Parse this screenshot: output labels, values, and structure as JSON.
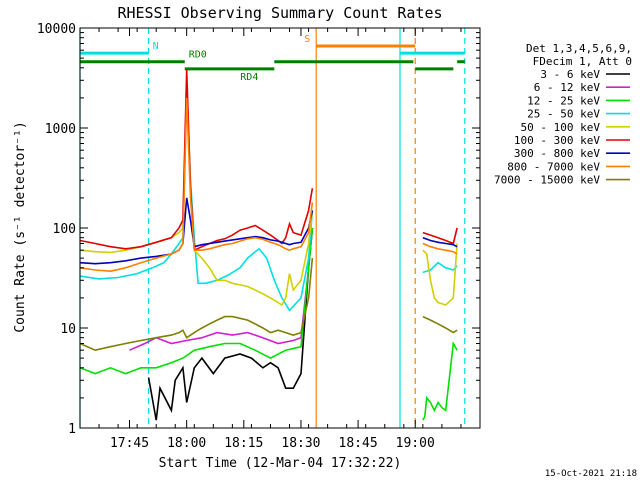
{
  "chart_data": {
    "type": "line",
    "title": "RHESSI Observing Summary Count Rates",
    "xlabel": "Start Time (12-Mar-04 17:32:22)",
    "ylabel": "Count Rate (s⁻¹ detector⁻¹)",
    "yscale": "log",
    "ylim": [
      1,
      10000
    ],
    "xlim_minutes": [
      0,
      105
    ],
    "x_ticks": [
      {
        "min": 13,
        "label": "17:45"
      },
      {
        "min": 28,
        "label": "18:00"
      },
      {
        "min": 43,
        "label": "18:15"
      },
      {
        "min": 58,
        "label": "18:30"
      },
      {
        "min": 73,
        "label": "18:45"
      },
      {
        "min": 88,
        "label": "19:00"
      }
    ],
    "y_ticks": [
      {
        "v": 1,
        "label": "1"
      },
      {
        "v": 10,
        "label": "10"
      },
      {
        "v": 100,
        "label": "100"
      },
      {
        "v": 1000,
        "label": "1000"
      },
      {
        "v": 10000,
        "label": "10000"
      }
    ],
    "legend_header": [
      "Det 1,3,4,5,6,9,",
      "FDecim 1, Att 0"
    ],
    "legend_position": "right",
    "series": [
      {
        "name": "3 - 6 keV",
        "color": "#000000",
        "points": [
          [
            18,
            3.2
          ],
          [
            20,
            1.2
          ],
          [
            21,
            2.5
          ],
          [
            24,
            1.5
          ],
          [
            25,
            3
          ],
          [
            27,
            4
          ],
          [
            28,
            1.8
          ],
          [
            30,
            4
          ],
          [
            32,
            5
          ],
          [
            35,
            3.5
          ],
          [
            38,
            5
          ],
          [
            42,
            5.5
          ],
          [
            45,
            5
          ],
          [
            48,
            4
          ],
          [
            50,
            4.5
          ],
          [
            52,
            4
          ],
          [
            54,
            2.5
          ],
          [
            56,
            2.5
          ],
          [
            58,
            3.5
          ],
          [
            60,
            40
          ],
          [
            61,
            100
          ]
        ]
      },
      {
        "name": "6 - 12 keV",
        "color": "#d020d0",
        "points": [
          [
            13,
            6
          ],
          [
            17,
            7
          ],
          [
            20,
            8
          ],
          [
            24,
            7
          ],
          [
            28,
            7.5
          ],
          [
            32,
            8
          ],
          [
            36,
            9
          ],
          [
            40,
            8.5
          ],
          [
            44,
            9
          ],
          [
            48,
            8
          ],
          [
            52,
            7
          ],
          [
            56,
            7.5
          ],
          [
            58,
            8
          ],
          [
            60,
            40
          ],
          [
            61,
            100
          ]
        ]
      },
      {
        "name": "12 - 25 keV",
        "color": "#00e000",
        "points": [
          [
            0,
            4
          ],
          [
            4,
            3.5
          ],
          [
            8,
            4
          ],
          [
            12,
            3.5
          ],
          [
            16,
            4
          ],
          [
            20,
            4
          ],
          [
            24,
            4.5
          ],
          [
            27,
            5
          ],
          [
            30,
            6
          ],
          [
            34,
            6.5
          ],
          [
            38,
            7
          ],
          [
            42,
            7
          ],
          [
            46,
            6
          ],
          [
            50,
            5
          ],
          [
            54,
            6
          ],
          [
            58,
            6.5
          ],
          [
            60,
            40
          ],
          [
            61,
            100
          ],
          [
            90,
            1.2
          ],
          [
            90.5,
            1.3
          ],
          [
            91,
            2
          ],
          [
            92,
            1.8
          ],
          [
            93,
            1.5
          ],
          [
            94,
            1.8
          ],
          [
            95,
            1.6
          ],
          [
            96,
            1.5
          ],
          [
            98,
            7
          ],
          [
            99,
            6
          ]
        ]
      },
      {
        "name": "25 - 50 keV",
        "color": "#00e0e0",
        "points": [
          [
            0,
            33
          ],
          [
            5,
            31
          ],
          [
            10,
            32
          ],
          [
            15,
            35
          ],
          [
            19,
            40
          ],
          [
            22,
            45
          ],
          [
            24,
            55
          ],
          [
            26,
            70
          ],
          [
            27,
            80
          ],
          [
            28,
            2500
          ],
          [
            29,
            300
          ],
          [
            30,
            80
          ],
          [
            31,
            28
          ],
          [
            33,
            28
          ],
          [
            36,
            30
          ],
          [
            39,
            34
          ],
          [
            42,
            40
          ],
          [
            44,
            50
          ],
          [
            46,
            58
          ],
          [
            47,
            62
          ],
          [
            49,
            50
          ],
          [
            51,
            30
          ],
          [
            53,
            20
          ],
          [
            55,
            15
          ],
          [
            58,
            20
          ],
          [
            60,
            50
          ],
          [
            61,
            150
          ],
          [
            90,
            36
          ],
          [
            92,
            38
          ],
          [
            94,
            45
          ],
          [
            96,
            40
          ],
          [
            98,
            38
          ],
          [
            99,
            42
          ]
        ]
      },
      {
        "name": "50 - 100 keV",
        "color": "#d0d000",
        "points": [
          [
            0,
            60
          ],
          [
            4,
            58
          ],
          [
            8,
            57
          ],
          [
            12,
            60
          ],
          [
            16,
            65
          ],
          [
            20,
            72
          ],
          [
            24,
            80
          ],
          [
            26,
            90
          ],
          [
            27,
            100
          ],
          [
            28,
            3000
          ],
          [
            29,
            250
          ],
          [
            30,
            60
          ],
          [
            32,
            50
          ],
          [
            34,
            40
          ],
          [
            36,
            30
          ],
          [
            38,
            30
          ],
          [
            40,
            28
          ],
          [
            42,
            27
          ],
          [
            44,
            26
          ],
          [
            46,
            24
          ],
          [
            48,
            22
          ],
          [
            50,
            20
          ],
          [
            52,
            18
          ],
          [
            53,
            17
          ],
          [
            54,
            20
          ],
          [
            55,
            35
          ],
          [
            56,
            24
          ],
          [
            58,
            30
          ],
          [
            60,
            70
          ],
          [
            61,
            150
          ],
          [
            90,
            60
          ],
          [
            91,
            55
          ],
          [
            92,
            30
          ],
          [
            93,
            20
          ],
          [
            94,
            18
          ],
          [
            96,
            17
          ],
          [
            98,
            20
          ],
          [
            99,
            70
          ]
        ]
      },
      {
        "name": "100 - 300 keV",
        "color": "#e00000",
        "points": [
          [
            0,
            75
          ],
          [
            4,
            70
          ],
          [
            8,
            65
          ],
          [
            12,
            62
          ],
          [
            16,
            65
          ],
          [
            20,
            72
          ],
          [
            24,
            80
          ],
          [
            26,
            100
          ],
          [
            27,
            120
          ],
          [
            28,
            3800
          ],
          [
            29,
            250
          ],
          [
            30,
            60
          ],
          [
            32,
            65
          ],
          [
            34,
            70
          ],
          [
            36,
            75
          ],
          [
            38,
            78
          ],
          [
            40,
            85
          ],
          [
            42,
            95
          ],
          [
            44,
            100
          ],
          [
            46,
            106
          ],
          [
            48,
            95
          ],
          [
            50,
            85
          ],
          [
            52,
            75
          ],
          [
            53,
            70
          ],
          [
            54,
            80
          ],
          [
            55,
            110
          ],
          [
            56,
            90
          ],
          [
            58,
            85
          ],
          [
            60,
            150
          ],
          [
            61,
            250
          ],
          [
            90,
            90
          ],
          [
            92,
            85
          ],
          [
            94,
            80
          ],
          [
            96,
            75
          ],
          [
            98,
            70
          ],
          [
            99,
            100
          ]
        ]
      },
      {
        "name": "300 - 800 keV",
        "color": "#0000c0",
        "points": [
          [
            0,
            45
          ],
          [
            4,
            44
          ],
          [
            8,
            45
          ],
          [
            12,
            47
          ],
          [
            16,
            50
          ],
          [
            20,
            52
          ],
          [
            24,
            55
          ],
          [
            26,
            60
          ],
          [
            27,
            70
          ],
          [
            28,
            200
          ],
          [
            29,
            120
          ],
          [
            30,
            65
          ],
          [
            32,
            68
          ],
          [
            34,
            70
          ],
          [
            36,
            72
          ],
          [
            38,
            74
          ],
          [
            40,
            76
          ],
          [
            42,
            78
          ],
          [
            44,
            80
          ],
          [
            46,
            82
          ],
          [
            48,
            80
          ],
          [
            50,
            76
          ],
          [
            52,
            74
          ],
          [
            53,
            72
          ],
          [
            54,
            70
          ],
          [
            55,
            68
          ],
          [
            56,
            70
          ],
          [
            58,
            72
          ],
          [
            60,
            100
          ],
          [
            61,
            150
          ],
          [
            90,
            80
          ],
          [
            92,
            75
          ],
          [
            94,
            72
          ],
          [
            96,
            70
          ],
          [
            98,
            68
          ],
          [
            99,
            65
          ]
        ]
      },
      {
        "name": "800 - 7000 keV",
        "color": "#ff8000",
        "points": [
          [
            0,
            40
          ],
          [
            4,
            38
          ],
          [
            8,
            37
          ],
          [
            12,
            40
          ],
          [
            16,
            45
          ],
          [
            20,
            50
          ],
          [
            24,
            55
          ],
          [
            26,
            60
          ],
          [
            27,
            70
          ],
          [
            28,
            2000
          ],
          [
            29,
            200
          ],
          [
            30,
            60
          ],
          [
            32,
            60
          ],
          [
            34,
            62
          ],
          [
            36,
            65
          ],
          [
            38,
            68
          ],
          [
            40,
            70
          ],
          [
            42,
            74
          ],
          [
            44,
            78
          ],
          [
            46,
            80
          ],
          [
            48,
            77
          ],
          [
            50,
            72
          ],
          [
            52,
            68
          ],
          [
            53,
            65
          ],
          [
            54,
            62
          ],
          [
            55,
            60
          ],
          [
            56,
            62
          ],
          [
            58,
            65
          ],
          [
            60,
            90
          ],
          [
            61,
            180
          ],
          [
            90,
            70
          ],
          [
            92,
            65
          ],
          [
            94,
            62
          ],
          [
            96,
            60
          ],
          [
            98,
            58
          ],
          [
            99,
            55
          ]
        ]
      },
      {
        "name": "7000 - 15000 keV",
        "color": "#808000",
        "points": [
          [
            0,
            7
          ],
          [
            4,
            6
          ],
          [
            8,
            6.5
          ],
          [
            12,
            7
          ],
          [
            16,
            7.5
          ],
          [
            20,
            8
          ],
          [
            24,
            8.5
          ],
          [
            26,
            9
          ],
          [
            27,
            9.5
          ],
          [
            28,
            8
          ],
          [
            30,
            9
          ],
          [
            32,
            10
          ],
          [
            34,
            11
          ],
          [
            36,
            12
          ],
          [
            38,
            13
          ],
          [
            40,
            13
          ],
          [
            42,
            12.5
          ],
          [
            44,
            12
          ],
          [
            46,
            11
          ],
          [
            48,
            10
          ],
          [
            50,
            9
          ],
          [
            52,
            9.5
          ],
          [
            54,
            9
          ],
          [
            56,
            8.5
          ],
          [
            58,
            9
          ],
          [
            60,
            20
          ],
          [
            61,
            50
          ],
          [
            90,
            13
          ],
          [
            92,
            12
          ],
          [
            94,
            11
          ],
          [
            96,
            10
          ],
          [
            98,
            9
          ],
          [
            99,
            9.5
          ]
        ]
      }
    ],
    "attenuator_segments": [
      {
        "label": "N",
        "color": "#00e0e0",
        "level": 5600,
        "ranges": [
          [
            0,
            18
          ],
          [
            84,
            101
          ]
        ]
      },
      {
        "label": "S",
        "color": "#ff8000",
        "level": 6600,
        "ranges": [
          [
            62,
            88
          ]
        ]
      },
      {
        "label": "RD0",
        "color": "#008000",
        "level": 4600,
        "ranges": [
          [
            0,
            27.5
          ],
          [
            51,
            87.5
          ],
          [
            99,
            101
          ]
        ]
      },
      {
        "label": "RD4",
        "color": "#008000",
        "level": 3900,
        "ranges": [
          [
            27.5,
            51
          ],
          [
            88,
            98
          ]
        ]
      }
    ],
    "vlines": [
      {
        "min": 0,
        "color": "#00e0e0",
        "style": "solid"
      },
      {
        "min": 18,
        "color": "#00e0e0",
        "style": "dashed"
      },
      {
        "min": 62,
        "color": "#ff8000",
        "style": "solid"
      },
      {
        "min": 84,
        "color": "#00e0e0",
        "style": "solid"
      },
      {
        "min": 88,
        "color": "#ff8000",
        "style": "dashed"
      },
      {
        "min": 101,
        "color": "#00e0e0",
        "style": "dashed"
      }
    ],
    "timestamp": "15-Oct-2021 21:18"
  }
}
